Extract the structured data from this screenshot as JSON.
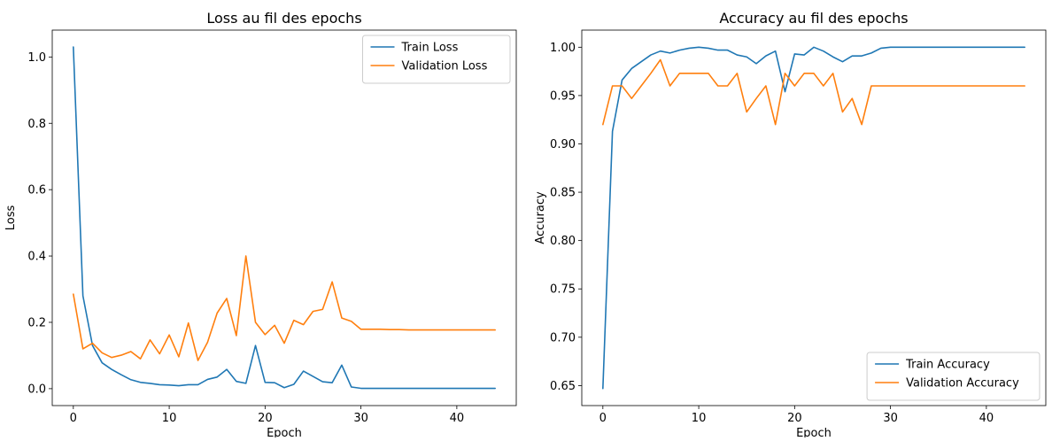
{
  "chart_data": [
    {
      "type": "line",
      "title": "Loss au fil des epochs",
      "xlabel": "Epoch",
      "ylabel": "Loss",
      "xlim": [
        -2.2,
        46.2
      ],
      "ylim": [
        -0.051,
        1.081
      ],
      "xticks": [
        0,
        10,
        20,
        30,
        40
      ],
      "yticks": [
        0.0,
        0.2,
        0.4,
        0.6,
        0.8,
        1.0
      ],
      "ytick_labels": [
        "0.0",
        "0.2",
        "0.4",
        "0.6",
        "0.8",
        "1.0"
      ],
      "legend_position": "upper right",
      "grid": false,
      "x": [
        0,
        1,
        2,
        3,
        4,
        5,
        6,
        7,
        8,
        9,
        10,
        11,
        12,
        13,
        14,
        15,
        16,
        17,
        18,
        19,
        20,
        21,
        22,
        23,
        24,
        25,
        26,
        27,
        28,
        29,
        30,
        31,
        32,
        33,
        34,
        35,
        36,
        37,
        38,
        39,
        40,
        41,
        42,
        43,
        44
      ],
      "series": [
        {
          "name": "Train Loss",
          "color": "#1f77b4",
          "values": [
            1.03,
            0.28,
            0.13,
            0.078,
            0.058,
            0.042,
            0.027,
            0.019,
            0.016,
            0.012,
            0.011,
            0.009,
            0.012,
            0.012,
            0.028,
            0.035,
            0.058,
            0.022,
            0.016,
            0.13,
            0.019,
            0.018,
            0.003,
            0.013,
            0.053,
            0.037,
            0.021,
            0.018,
            0.071,
            0.005,
            0.001,
            0.001,
            0.001,
            0.001,
            0.001,
            0.001,
            0.001,
            0.001,
            0.001,
            0.001,
            0.001,
            0.001,
            0.001,
            0.001,
            0.001
          ]
        },
        {
          "name": "Validation Loss",
          "color": "#ff7f0e",
          "values": [
            0.285,
            0.12,
            0.137,
            0.108,
            0.094,
            0.101,
            0.112,
            0.09,
            0.147,
            0.105,
            0.162,
            0.096,
            0.198,
            0.085,
            0.14,
            0.228,
            0.272,
            0.16,
            0.4,
            0.2,
            0.163,
            0.191,
            0.137,
            0.206,
            0.193,
            0.233,
            0.239,
            0.322,
            0.213,
            0.203,
            0.179,
            0.179,
            0.179,
            0.178,
            0.178,
            0.177,
            0.177,
            0.177,
            0.177,
            0.177,
            0.177,
            0.177,
            0.177,
            0.177,
            0.177
          ]
        }
      ]
    },
    {
      "type": "line",
      "title": "Accuracy au fil des epochs",
      "xlabel": "Epoch",
      "ylabel": "Accuracy",
      "xlim": [
        -2.2,
        46.2
      ],
      "ylim": [
        0.6293,
        1.0177
      ],
      "xticks": [
        0,
        10,
        20,
        30,
        40
      ],
      "yticks": [
        0.65,
        0.7,
        0.75,
        0.8,
        0.85,
        0.9,
        0.95,
        1.0
      ],
      "ytick_labels": [
        "0.65",
        "0.70",
        "0.75",
        "0.80",
        "0.85",
        "0.90",
        "0.95",
        "1.00"
      ],
      "legend_position": "lower right",
      "grid": false,
      "x": [
        0,
        1,
        2,
        3,
        4,
        5,
        6,
        7,
        8,
        9,
        10,
        11,
        12,
        13,
        14,
        15,
        16,
        17,
        18,
        19,
        20,
        21,
        22,
        23,
        24,
        25,
        26,
        27,
        28,
        29,
        30,
        31,
        32,
        33,
        34,
        35,
        36,
        37,
        38,
        39,
        40,
        41,
        42,
        43,
        44
      ],
      "series": [
        {
          "name": "Train Accuracy",
          "color": "#1f77b4",
          "values": [
            0.647,
            0.913,
            0.966,
            0.978,
            0.985,
            0.992,
            0.996,
            0.994,
            0.997,
            0.999,
            1.0,
            0.999,
            0.997,
            0.997,
            0.992,
            0.99,
            0.983,
            0.991,
            0.996,
            0.954,
            0.993,
            0.992,
            1.0,
            0.996,
            0.99,
            0.985,
            0.991,
            0.991,
            0.994,
            0.999,
            1.0,
            1.0,
            1.0,
            1.0,
            1.0,
            1.0,
            1.0,
            1.0,
            1.0,
            1.0,
            1.0,
            1.0,
            1.0,
            1.0,
            1.0
          ]
        },
        {
          "name": "Validation Accuracy",
          "color": "#ff7f0e",
          "values": [
            0.92,
            0.96,
            0.96,
            0.947,
            0.96,
            0.973,
            0.987,
            0.96,
            0.973,
            0.973,
            0.973,
            0.973,
            0.96,
            0.96,
            0.973,
            0.933,
            0.947,
            0.96,
            0.92,
            0.973,
            0.96,
            0.973,
            0.973,
            0.96,
            0.973,
            0.933,
            0.947,
            0.92,
            0.96,
            0.96,
            0.96,
            0.96,
            0.96,
            0.96,
            0.96,
            0.96,
            0.96,
            0.96,
            0.96,
            0.96,
            0.96,
            0.96,
            0.96,
            0.96,
            0.96
          ]
        }
      ]
    }
  ]
}
